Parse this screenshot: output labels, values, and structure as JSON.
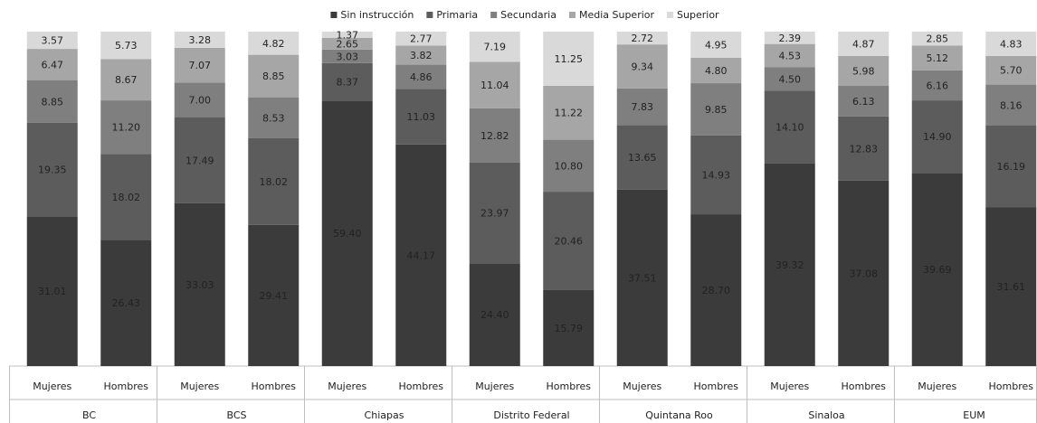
{
  "chart_data": {
    "type": "bar",
    "stacking": "percent",
    "categories": [
      "Mujeres",
      "Hombres",
      "Mujeres",
      "Hombres",
      "Mujeres",
      "Hombres",
      "Mujeres",
      "Hombres",
      "Mujeres",
      "Hombres",
      "Mujeres",
      "Hombres",
      "Mujeres",
      "Hombres"
    ],
    "groups": [
      "BC",
      "BCS",
      "Chiapas",
      "Distrito Federal",
      "Quintana Roo",
      "Sinaloa",
      "EUM"
    ],
    "legend": "top",
    "series": [
      {
        "name": "Sin instrucción",
        "color": "#3b3b3b",
        "values": [
          31.01,
          26.43,
          33.03,
          29.41,
          59.4,
          44.17,
          24.4,
          15.79,
          37.51,
          28.7,
          39.32,
          37.08,
          39.69,
          31.61
        ],
        "value_labels": [
          "31.01",
          "26.43",
          "33.03",
          "29.41",
          "59.40",
          "44.17",
          "24.40",
          "15.79",
          "37.51",
          "28.70",
          "39.32",
          "37.08",
          "39.69",
          "31.61"
        ]
      },
      {
        "name": "Primaria",
        "color": "#5c5c5c",
        "values": [
          19.35,
          18.02,
          17.49,
          18.02,
          8.37,
          11.03,
          23.97,
          20.46,
          13.65,
          14.93,
          14.1,
          12.83,
          14.9,
          16.19
        ],
        "value_labels": [
          "19.35",
          "18.02",
          "17.49",
          "18.02",
          "8.37",
          "11.03",
          "23.97",
          "20.46",
          "13.65",
          "14.93",
          "14.10",
          "12.83",
          "14.90",
          "16.19"
        ]
      },
      {
        "name": "Secundaria",
        "color": "#7f7f7f",
        "values": [
          8.85,
          11.2,
          7.0,
          8.53,
          3.03,
          4.86,
          12.82,
          10.8,
          7.83,
          9.85,
          4.5,
          6.13,
          6.16,
          8.16
        ],
        "value_labels": [
          "8.85",
          "11.20",
          "7.00",
          "8.53",
          "3.03",
          "4.86",
          "12.82",
          "10.80",
          "7.83",
          "9.85",
          "4.50",
          "6.13",
          "6.16",
          "8.16"
        ]
      },
      {
        "name": "Media Superior",
        "color": "#a6a6a6",
        "values": [
          6.47,
          8.67,
          7.07,
          8.85,
          2.65,
          3.82,
          11.04,
          11.22,
          9.34,
          4.8,
          4.53,
          5.98,
          5.12,
          5.7
        ],
        "value_labels": [
          "6.47",
          "8.67",
          "7.07",
          "8.85",
          "2.65",
          "3.82",
          "11.04",
          "11.22",
          "9.34",
          "4.80",
          "4.53",
          "5.98",
          "5.12",
          "5.70"
        ]
      },
      {
        "name": "Superior",
        "color": "#d9d9d9",
        "values": [
          3.57,
          5.73,
          3.28,
          4.82,
          1.37,
          2.77,
          7.19,
          11.25,
          2.72,
          4.95,
          2.39,
          4.87,
          2.85,
          4.83
        ],
        "value_labels": [
          "3.57",
          "5.73",
          "3.28",
          "4.82",
          "1.37",
          "2.77",
          "7.19",
          "11.25",
          "2.72",
          "4.95",
          "2.39",
          "4.87",
          "2.85",
          "4.83"
        ]
      }
    ]
  }
}
